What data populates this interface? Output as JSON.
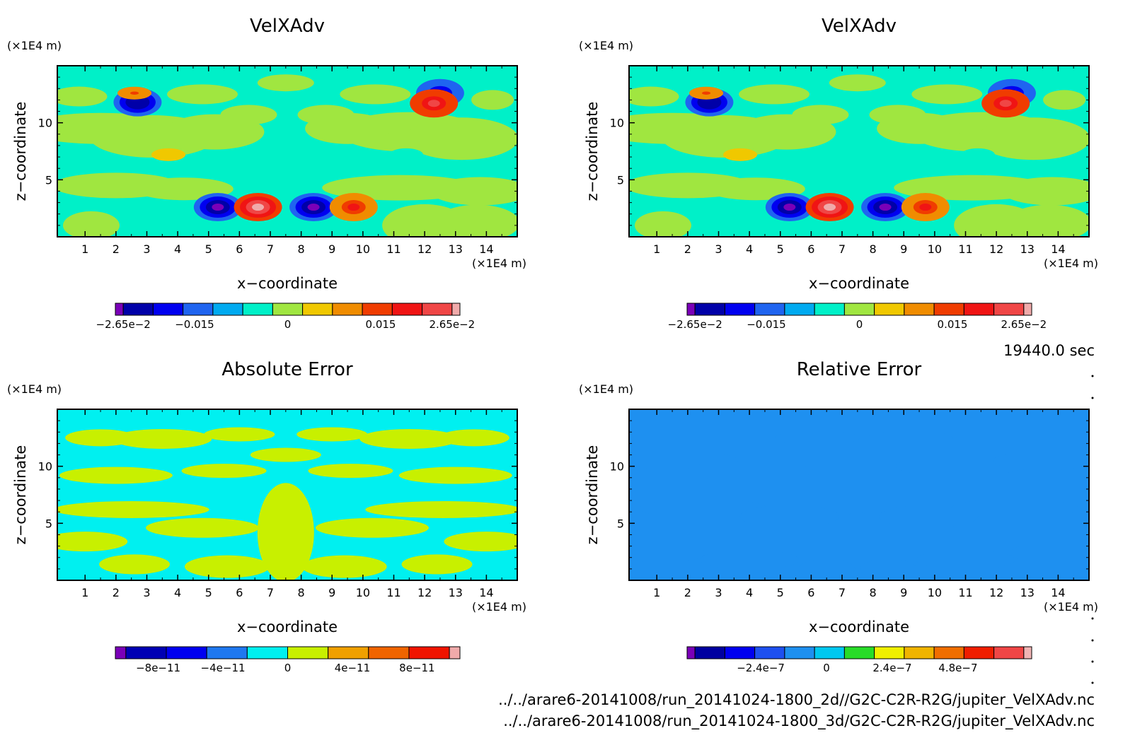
{
  "time_label": "19440.0 sec",
  "files": [
    "../../arare6-20141008/run_20141024-1800_2d//G2C-C2R-R2G/jupiter_VelXAdv.nc",
    "../../arare6-20141008/run_20141024-1800_3d/G2C-C2R-R2G/jupiter_VelXAdv.nc"
  ],
  "colors": {
    "velx": [
      "#7a00b8",
      "#0000a8",
      "#0000f0",
      "#1f64f0",
      "#00aaf0",
      "#00f0c8",
      "#a0e640",
      "#f0c800",
      "#f08c00",
      "#f03c00",
      "#f01414",
      "#f04646",
      "#f0aaaa"
    ],
    "abserr": [
      "#7a00b8",
      "#0000b4",
      "#0000f0",
      "#1f78f0",
      "#00f0f0",
      "#c8f000",
      "#f0a000",
      "#f06400",
      "#f01400",
      "#f0aaaa"
    ],
    "relerr": [
      "#7a00b8",
      "#0000a0",
      "#0000f0",
      "#1e50f0",
      "#1e90f0",
      "#00c8f0",
      "#28dc28",
      "#f0f000",
      "#f0b400",
      "#f06e00",
      "#f01e00",
      "#f04646",
      "#f0b4b4"
    ]
  },
  "chart_data": [
    {
      "type": "heatmap",
      "title": "VelXAdv",
      "xlabel": "x−coordinate",
      "ylabel": "z−coordinate",
      "x_unit": "(×1E4 m)",
      "y_unit": "(×1E4 m)",
      "xticks": [
        1,
        2,
        3,
        4,
        5,
        6,
        7,
        8,
        9,
        10,
        11,
        12,
        13,
        14
      ],
      "yticks": [
        5,
        10
      ],
      "xlim": [
        0.1,
        15.0
      ],
      "ylim": [
        0.0,
        15.0
      ],
      "colorbar": {
        "min": -0.0265,
        "max": 0.0265,
        "labels": [
          "−2.65e−2",
          "−0.015",
          "0",
          "0.015",
          "2.65e−2"
        ],
        "label_values": [
          -0.0265,
          -0.015,
          0,
          0.015,
          0.0265
        ]
      },
      "features": [
        {
          "x": 5.3,
          "z": 2.6,
          "value": -0.024
        },
        {
          "x": 6.6,
          "z": 2.6,
          "value": 0.025
        },
        {
          "x": 8.4,
          "z": 2.6,
          "value": -0.026
        },
        {
          "x": 9.7,
          "z": 2.6,
          "value": 0.015
        },
        {
          "x": 2.7,
          "z": 11.8,
          "value": -0.022
        },
        {
          "x": 2.6,
          "z": 12.6,
          "value": 0.012
        },
        {
          "x": 12.5,
          "z": 12.6,
          "value": -0.02
        },
        {
          "x": 12.3,
          "z": 11.7,
          "value": 0.02
        },
        {
          "x": 3.7,
          "z": 7.2,
          "value": 0.006
        },
        {
          "x": 11.4,
          "z": 7.2,
          "value": -0.006
        }
      ]
    },
    {
      "type": "heatmap",
      "title": "VelXAdv",
      "xlabel": "x−coordinate",
      "ylabel": "z−coordinate",
      "x_unit": "(×1E4 m)",
      "y_unit": "(×1E4 m)",
      "xticks": [
        1,
        2,
        3,
        4,
        5,
        6,
        7,
        8,
        9,
        10,
        11,
        12,
        13,
        14
      ],
      "yticks": [
        5,
        10
      ],
      "xlim": [
        0.1,
        15.0
      ],
      "ylim": [
        0.0,
        15.0
      ],
      "colorbar": {
        "min": -0.0265,
        "max": 0.0265,
        "labels": [
          "−2.65e−2",
          "−0.015",
          "0",
          "0.015",
          "2.65e−2"
        ],
        "label_values": [
          -0.0265,
          -0.015,
          0,
          0.015,
          0.0265
        ]
      },
      "features": [
        {
          "x": 5.3,
          "z": 2.6,
          "value": -0.024
        },
        {
          "x": 6.6,
          "z": 2.6,
          "value": 0.025
        },
        {
          "x": 8.4,
          "z": 2.6,
          "value": -0.026
        },
        {
          "x": 9.7,
          "z": 2.6,
          "value": 0.015
        },
        {
          "x": 2.7,
          "z": 11.8,
          "value": -0.022
        },
        {
          "x": 2.6,
          "z": 12.6,
          "value": 0.012
        },
        {
          "x": 12.5,
          "z": 12.6,
          "value": -0.02
        },
        {
          "x": 12.3,
          "z": 11.7,
          "value": 0.02
        },
        {
          "x": 3.7,
          "z": 7.2,
          "value": 0.006
        },
        {
          "x": 11.4,
          "z": 7.2,
          "value": -0.006
        }
      ]
    },
    {
      "type": "heatmap",
      "title": "Absolute Error",
      "xlabel": "x−coordinate",
      "ylabel": "z−coordinate",
      "x_unit": "(×1E4 m)",
      "y_unit": "(×1E4 m)",
      "xticks": [
        1,
        2,
        3,
        4,
        5,
        6,
        7,
        8,
        9,
        10,
        11,
        12,
        13,
        14
      ],
      "yticks": [
        5,
        10
      ],
      "xlim": [
        0.1,
        15.0
      ],
      "ylim": [
        0.0,
        15.0
      ],
      "colorbar": {
        "min": -1e-10,
        "max": 1e-10,
        "labels": [
          "−8e−11",
          "−4e−11",
          "0",
          "4e−11",
          "8e−11"
        ],
        "label_values": [
          -8e-11,
          -4e-11,
          0,
          4e-11,
          8e-11
        ]
      }
    },
    {
      "type": "heatmap",
      "title": "Relative Error",
      "xlabel": "x−coordinate",
      "ylabel": "z−coordinate",
      "x_unit": "(×1E4 m)",
      "y_unit": "(×1E4 m)",
      "xticks": [
        1,
        2,
        3,
        4,
        5,
        6,
        7,
        8,
        9,
        10,
        11,
        12,
        13,
        14
      ],
      "yticks": [
        5,
        10
      ],
      "xlim": [
        0.1,
        15.0
      ],
      "ylim": [
        0.0,
        15.0
      ],
      "colorbar": {
        "min": -4.8e-07,
        "max": 7.2e-07,
        "labels": [
          "−2.4e−7",
          "0",
          "2.4e−7",
          "4.8e−7"
        ],
        "label_values": [
          -2.4e-07,
          0,
          2.4e-07,
          4.8e-07
        ]
      }
    }
  ]
}
